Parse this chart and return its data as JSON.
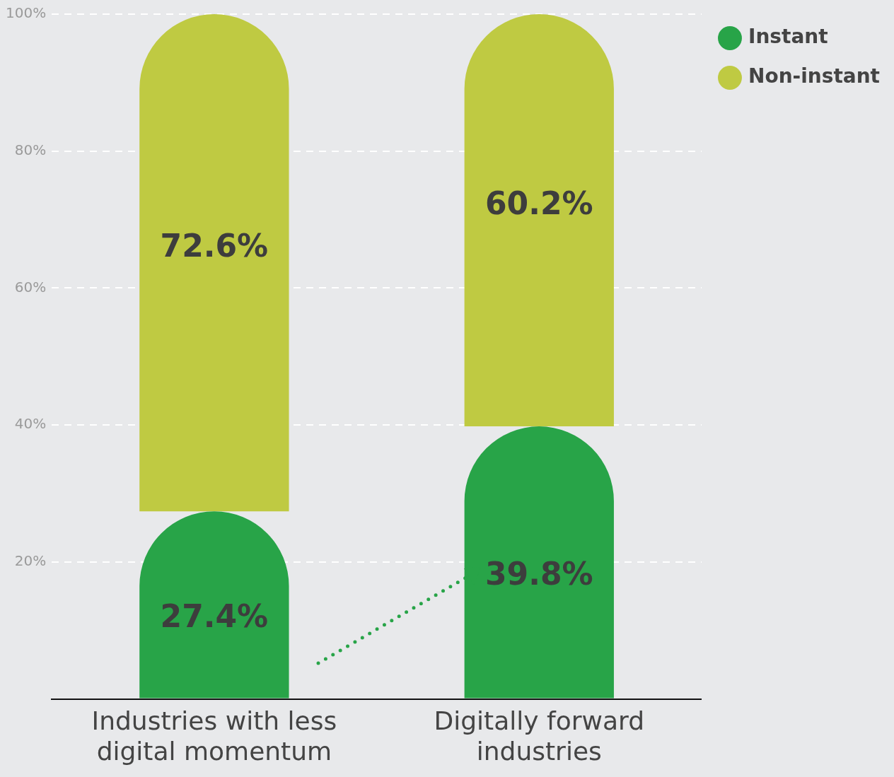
{
  "chart_data": {
    "type": "bar",
    "stacked": true,
    "categories": [
      "Industries with less digital momentum",
      "Digitally forward industries"
    ],
    "series": [
      {
        "name": "Instant",
        "color": "#28a448",
        "values": [
          27.4,
          39.8
        ],
        "value_labels": [
          "27.4%",
          "39.8%"
        ]
      },
      {
        "name": "Non-instant",
        "color": "#bfca42",
        "values": [
          72.6,
          60.2
        ],
        "value_labels": [
          "72.6%",
          "60.2%"
        ]
      }
    ],
    "ylim": [
      0,
      100
    ],
    "yticks": [
      {
        "value": 0,
        "label": null
      },
      {
        "value": 20,
        "label": "20%"
      },
      {
        "value": 40,
        "label": "40%"
      },
      {
        "value": 60,
        "label": "60%"
      },
      {
        "value": 80,
        "label": "80%"
      },
      {
        "value": 100,
        "label": "100%"
      }
    ],
    "grid": "y",
    "legend": "top right"
  }
}
